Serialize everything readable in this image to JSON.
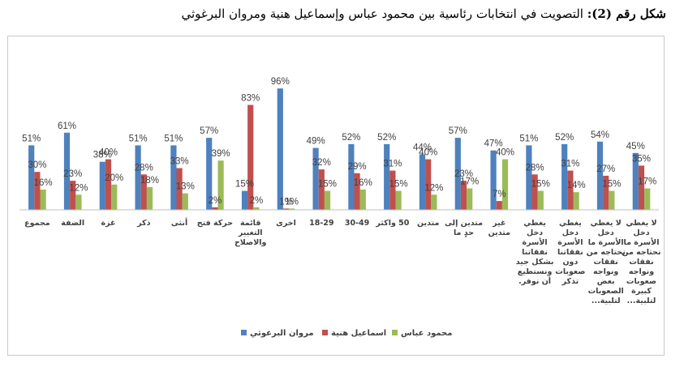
{
  "figure": {
    "caption_label": "شكل رقم (2):",
    "caption_text": "التصويت في انتخابات رئاسية بين محمود عباس وإسماعيل هنية ومروان البرغوثي"
  },
  "chart_data": {
    "type": "bar",
    "ylim": [
      0,
      100
    ],
    "grid": false,
    "legend_position": "bottom",
    "colors": [
      "#4e81bd",
      "#c0504d",
      "#9bbb59"
    ],
    "categories": [
      [
        "مجموع"
      ],
      [
        "الضفة"
      ],
      [
        "غزة"
      ],
      [
        "ذكر"
      ],
      [
        "أنثى"
      ],
      [
        "حركة فتح"
      ],
      [
        "قائمة",
        "التغيير",
        "والاصلاح"
      ],
      [
        "اخرى"
      ],
      [
        "18-29"
      ],
      [
        "30-49"
      ],
      [
        "50 واكثر"
      ],
      [
        "متدين"
      ],
      [
        "متدين إلى",
        "حدٍ ما"
      ],
      [
        "غير",
        "متدين"
      ],
      [
        "يغطي",
        "دخل",
        "الأسرة",
        "نفقاتنا",
        "بشكل جيد",
        "ونستطيع",
        "أن نوفر."
      ],
      [
        "يغطي",
        "دخل",
        "الأسرة",
        "نفقاتنا",
        "دون",
        "صعوبات",
        "تذكر"
      ],
      [
        "لا يغطي",
        "دخل",
        "الأسرة ما",
        "نحتاجه من",
        "نفقات",
        "ونواجه",
        "بعض",
        "الصعوبات",
        "لتلبية..."
      ],
      [
        "لا يغطي",
        "دخل",
        "الأسرة ما",
        "نحتاجه من",
        "نفقات",
        "ونواجه",
        "صعوبات",
        "كبيرة",
        "لتلبية..."
      ]
    ],
    "series": [
      {
        "name": "مروان البرغوثي",
        "values": [
          51,
          61,
          38,
          51,
          51,
          57,
          15,
          96,
          49,
          52,
          52,
          44,
          57,
          47,
          51,
          52,
          54,
          45
        ],
        "labels": [
          "51%",
          "61%",
          "38%",
          "51%",
          "51%",
          "57%",
          "15%",
          "96%",
          "49%",
          "52%",
          "52%",
          "44%",
          "57%",
          "47%",
          "51%",
          "52%",
          "54%",
          "45%"
        ]
      },
      {
        "name": "اسماعيل هنية",
        "values": [
          30,
          23,
          40,
          28,
          33,
          2,
          83,
          1,
          32,
          29,
          31,
          40,
          23,
          7,
          28,
          31,
          27,
          35
        ],
        "labels": [
          "30%",
          "23%",
          "40%",
          "28%",
          "33%",
          "2%",
          "83%",
          "1%",
          "32%",
          "29%",
          "31%",
          "40%",
          "23%",
          "7%",
          "28%",
          "31%",
          "27%",
          "35%"
        ]
      },
      {
        "name": "محمود عباس",
        "values": [
          16,
          12,
          20,
          18,
          13,
          39,
          2,
          1,
          15,
          16,
          15,
          12,
          17,
          40,
          15,
          14,
          15,
          17
        ],
        "labels": [
          "16%",
          "12%",
          "20%",
          "18%",
          "13%",
          "39%",
          "2%",
          "1%",
          "15%",
          "16%",
          "15%",
          "12%",
          "17%",
          "40%",
          "15%",
          "14%",
          "15%",
          "17%"
        ]
      }
    ]
  }
}
